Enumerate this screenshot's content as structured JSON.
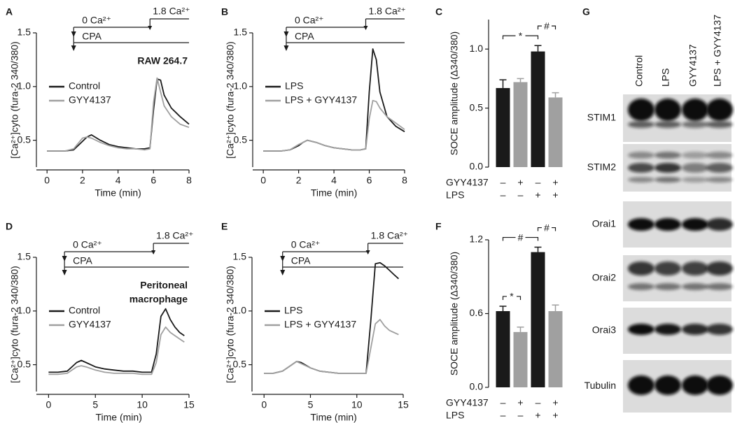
{
  "chart_data": [
    {
      "type": "line",
      "label": "A",
      "note": [
        "RAW 264.7"
      ],
      "xlabel": "Time (min)",
      "ylabel": "[Ca²⁺]cyto (fura-2 340/380)",
      "xlim": [
        -0.6,
        8
      ],
      "xticks": [
        0,
        2,
        4,
        6,
        8
      ],
      "ylim": [
        0.25,
        1.5
      ],
      "yticks": [
        0.5,
        {
          "value": 1,
          "label": "1.0"
        },
        1.5
      ],
      "legend": "upper left",
      "annotations": [
        {
          "text": "0 Ca²⁺",
          "x": 1.5
        },
        {
          "text": "1.8 Ca²⁺",
          "x": 5.8
        },
        {
          "text": "CPA",
          "x": 1.5
        }
      ],
      "x": [
        0,
        0.5,
        1,
        1.5,
        2,
        2.25,
        2.5,
        3,
        3.5,
        4,
        4.5,
        5,
        5.5,
        5.8,
        6,
        6.2,
        6.4,
        6.6,
        7,
        7.5,
        8
      ],
      "series": [
        {
          "name": "Control",
          "color": "#1a1a1a",
          "values": [
            0.4,
            0.4,
            0.4,
            0.41,
            0.49,
            0.53,
            0.55,
            0.5,
            0.46,
            0.44,
            0.43,
            0.42,
            0.42,
            0.43,
            0.78,
            1.07,
            1.06,
            0.92,
            0.8,
            0.72,
            0.65
          ]
        },
        {
          "name": "GYY4137",
          "color": "#a0a0a0",
          "values": [
            0.4,
            0.4,
            0.4,
            0.42,
            0.52,
            0.53,
            0.52,
            0.48,
            0.45,
            0.43,
            0.42,
            0.42,
            0.41,
            0.42,
            0.85,
            1.08,
            0.95,
            0.82,
            0.72,
            0.65,
            0.62
          ]
        }
      ]
    },
    {
      "type": "line",
      "label": "B",
      "xlabel": "Time (min)",
      "ylabel": "[Ca²⁺]cyto (fura-2 340/380)",
      "xlim": [
        -0.6,
        8
      ],
      "xticks": [
        0,
        2,
        4,
        6,
        8
      ],
      "ylim": [
        0.25,
        1.5
      ],
      "yticks": [
        0.5,
        {
          "value": 1,
          "label": "1.0"
        },
        1.5
      ],
      "legend": "upper left",
      "annotations": [
        {
          "text": "0 Ca²⁺",
          "x": 1.3
        },
        {
          "text": "1.8 Ca²⁺",
          "x": 5.8
        },
        {
          "text": "CPA",
          "x": 1.3
        }
      ],
      "x": [
        0,
        0.5,
        1,
        1.5,
        2,
        2.25,
        2.5,
        3,
        3.5,
        4,
        4.5,
        5,
        5.5,
        5.8,
        6,
        6.2,
        6.4,
        6.6,
        7,
        7.5,
        8
      ],
      "series": [
        {
          "name": "LPS",
          "color": "#1a1a1a",
          "values": [
            0.4,
            0.4,
            0.4,
            0.41,
            0.45,
            0.48,
            0.5,
            0.48,
            0.45,
            0.43,
            0.42,
            0.41,
            0.41,
            0.42,
            0.95,
            1.35,
            1.25,
            0.95,
            0.72,
            0.63,
            0.58
          ]
        },
        {
          "name": "LPS + GYY4137",
          "color": "#a0a0a0",
          "values": [
            0.4,
            0.4,
            0.4,
            0.41,
            0.46,
            0.48,
            0.5,
            0.48,
            0.45,
            0.43,
            0.42,
            0.41,
            0.41,
            0.42,
            0.7,
            0.87,
            0.86,
            0.8,
            0.72,
            0.66,
            0.6
          ]
        }
      ]
    },
    {
      "type": "bar",
      "label": "C",
      "ylabel": "SOCE amplitude (Δ340/380)",
      "ylim": [
        0,
        1.25
      ],
      "yticks": [
        {
          "value": 0,
          "label": "0.0"
        },
        0.5,
        {
          "value": 1,
          "label": "1.0"
        }
      ],
      "values": [
        0.67,
        0.72,
        0.98,
        0.59
      ],
      "errors": [
        0.07,
        0.03,
        0.05,
        0.04
      ],
      "colors": [
        "#1a1a1a",
        "#a0a0a0",
        "#1a1a1a",
        "#a0a0a0"
      ],
      "significance": [
        "*",
        "#"
      ],
      "rows": [
        {
          "name": "GYY4137",
          "signs": [
            "–",
            "+",
            "–",
            "+"
          ]
        },
        {
          "name": "LPS",
          "signs": [
            "–",
            "–",
            "+",
            "+"
          ]
        }
      ]
    },
    {
      "type": "line",
      "label": "D",
      "note": [
        "Peritoneal",
        "macrophage"
      ],
      "xlabel": "Time (min)",
      "ylabel": "[Ca²⁺]cyto (fura-2 340/380)",
      "xlim": [
        -1.3,
        15
      ],
      "xticks": [
        0,
        5,
        10,
        15
      ],
      "ylim": [
        0.25,
        1.5
      ],
      "yticks": [
        0.5,
        {
          "value": 1,
          "label": "1.0"
        },
        1.5
      ],
      "legend": "upper left",
      "annotations": [
        {
          "text": "0 Ca²⁺",
          "x": 1.7
        },
        {
          "text": "1.8 Ca²⁺",
          "x": 11.2
        },
        {
          "text": "CPA",
          "x": 1.7
        }
      ],
      "x": [
        0,
        1,
        2,
        3,
        3.5,
        4,
        5,
        6,
        7,
        8,
        9,
        10,
        11,
        11.5,
        12,
        12.5,
        13,
        13.5,
        14,
        14.5
      ],
      "series": [
        {
          "name": "Control",
          "color": "#1a1a1a",
          "values": [
            0.43,
            0.43,
            0.44,
            0.52,
            0.54,
            0.52,
            0.48,
            0.46,
            0.45,
            0.44,
            0.44,
            0.43,
            0.43,
            0.6,
            0.95,
            1.02,
            0.92,
            0.85,
            0.8,
            0.77
          ]
        },
        {
          "name": "GYY4137",
          "color": "#a0a0a0",
          "values": [
            0.41,
            0.41,
            0.42,
            0.48,
            0.49,
            0.48,
            0.45,
            0.43,
            0.42,
            0.42,
            0.42,
            0.41,
            0.41,
            0.52,
            0.78,
            0.85,
            0.8,
            0.77,
            0.74,
            0.71
          ]
        }
      ]
    },
    {
      "type": "line",
      "label": "E",
      "xlabel": "Time (min)",
      "ylabel": "[Ca²⁺]cyto (fura-2 340/380)",
      "xlim": [
        -1.3,
        15
      ],
      "xticks": [
        0,
        5,
        10,
        15
      ],
      "ylim": [
        0.25,
        1.5
      ],
      "yticks": [
        0.5,
        {
          "value": 1,
          "label": "1.0"
        },
        1.5
      ],
      "legend": "upper left",
      "annotations": [
        {
          "text": "0 Ca²⁺",
          "x": 2
        },
        {
          "text": "1.8 Ca²⁺",
          "x": 11.2
        },
        {
          "text": "CPA",
          "x": 2
        }
      ],
      "x": [
        0,
        1,
        2,
        3,
        3.5,
        4,
        5,
        6,
        7,
        8,
        9,
        10,
        11,
        11.5,
        12,
        12.5,
        13,
        13.5,
        14,
        14.5
      ],
      "series": [
        {
          "name": "LPS",
          "color": "#1a1a1a",
          "values": [
            0.42,
            0.42,
            0.44,
            0.5,
            0.53,
            0.52,
            0.47,
            0.44,
            0.43,
            0.42,
            0.42,
            0.42,
            0.42,
            0.9,
            1.44,
            1.45,
            1.42,
            1.38,
            1.34,
            1.3
          ]
        },
        {
          "name": "LPS + GYY4137",
          "color": "#a0a0a0",
          "values": [
            0.42,
            0.42,
            0.44,
            0.5,
            0.53,
            0.51,
            0.47,
            0.44,
            0.43,
            0.42,
            0.42,
            0.42,
            0.42,
            0.65,
            0.88,
            0.92,
            0.86,
            0.82,
            0.8,
            0.78
          ]
        }
      ]
    },
    {
      "type": "bar",
      "label": "F",
      "ylabel": "SOCE amplitude (Δ340/380)",
      "ylim": [
        0,
        1.2
      ],
      "yticks": [
        {
          "value": 0,
          "label": "0.0"
        },
        0.6,
        1.2
      ],
      "values": [
        0.62,
        0.45,
        1.1,
        0.62
      ],
      "errors": [
        0.04,
        0.04,
        0.04,
        0.05
      ],
      "colors": [
        "#1a1a1a",
        "#a0a0a0",
        "#1a1a1a",
        "#a0a0a0"
      ],
      "significance": [
        "*",
        "#",
        "#"
      ],
      "rows": [
        {
          "name": "GYY4137",
          "signs": [
            "–",
            "+",
            "–",
            "+"
          ]
        },
        {
          "name": "LPS",
          "signs": [
            "–",
            "–",
            "+",
            "+"
          ]
        }
      ]
    }
  ],
  "blot": {
    "label": "G",
    "columns": [
      "Control",
      "LPS",
      "GYY4137",
      "LPS + GYY4137"
    ],
    "rows": [
      "STIM1",
      "STIM2",
      "Orai1",
      "Orai2",
      "Orai3",
      "Tubulin"
    ]
  }
}
